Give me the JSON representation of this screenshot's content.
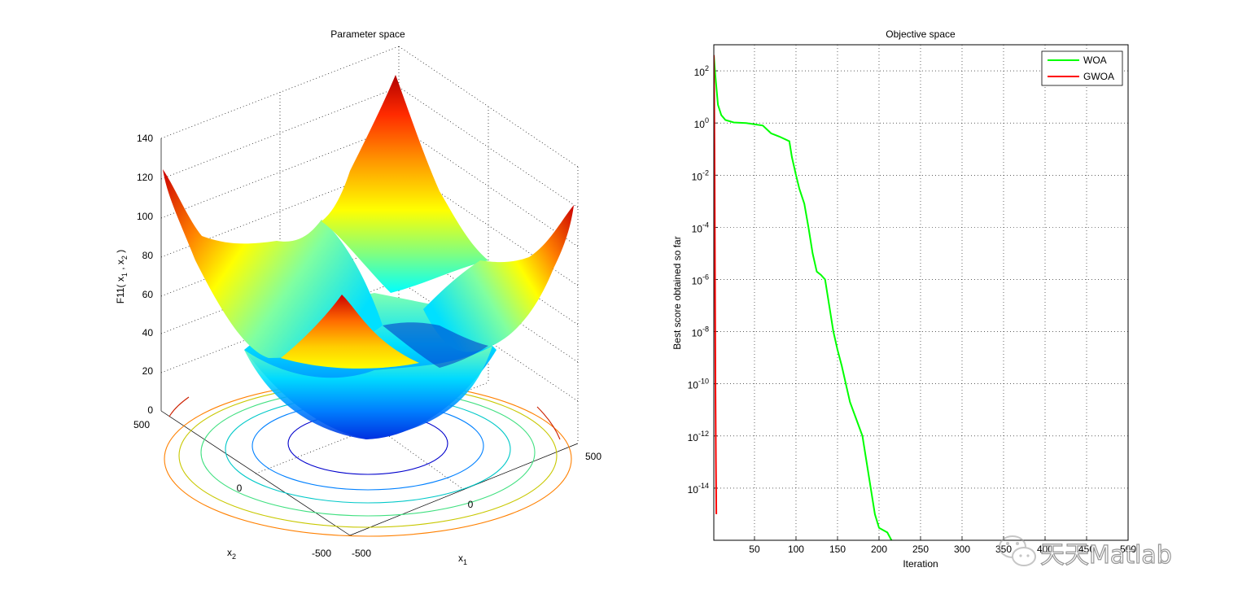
{
  "left_panel": {
    "title": "Parameter space",
    "zlabel": "F11( x",
    "zlabel_sub1": "1",
    "zlabel_mid": " , x",
    "zlabel_sub2": "2",
    "zlabel_end": " )",
    "xlabel": "x",
    "xlabel_sub": "1",
    "ylabel": "x",
    "ylabel_sub": "2"
  },
  "right_panel": {
    "title": "Objective space",
    "xlabel": "Iteration",
    "ylabel": "Best score obtained so far",
    "legend": [
      "WOA",
      "GWOA"
    ]
  },
  "watermark": {
    "text": "天天Matlab"
  },
  "chart_data": [
    {
      "type": "surface",
      "title": "Parameter space",
      "function": "F11",
      "xlabel": "x1",
      "ylabel": "x2",
      "zlabel": "F11( x1 , x2 )",
      "x_ticks": [
        "-500",
        "0",
        "500"
      ],
      "y_ticks": [
        "-500",
        "0",
        "500"
      ],
      "z_ticks": [
        "0",
        "20",
        "40",
        "60",
        "80",
        "100",
        "120",
        "140"
      ],
      "xlim": [
        -500,
        500
      ],
      "ylim": [
        -500,
        500
      ],
      "zlim": [
        0,
        140
      ],
      "colormap": "jet",
      "contour_levels": 7,
      "grid": true
    },
    {
      "type": "line",
      "title": "Objective space",
      "xlabel": "Iteration",
      "ylabel": "Best score obtained so far",
      "yscale": "log",
      "xlim": [
        1,
        500
      ],
      "ylim": [
        1e-16,
        1000
      ],
      "x_ticks": [
        "50",
        "100",
        "150",
        "200",
        "250",
        "300",
        "350",
        "400",
        "450",
        "500"
      ],
      "y_ticks": [
        {
          "base": "10",
          "exp": "2",
          "value": 100
        },
        {
          "base": "10",
          "exp": "0",
          "value": 1
        },
        {
          "base": "10",
          "exp": "-2",
          "value": 0.01
        },
        {
          "base": "10",
          "exp": "-4",
          "value": 0.0001
        },
        {
          "base": "10",
          "exp": "-6",
          "value": 1e-06
        },
        {
          "base": "10",
          "exp": "-8",
          "value": 1e-08
        },
        {
          "base": "10",
          "exp": "-10",
          "value": 1e-10
        },
        {
          "base": "10",
          "exp": "-12",
          "value": 1e-12
        },
        {
          "base": "10",
          "exp": "-14",
          "value": 1e-14
        }
      ],
      "grid": true,
      "legend_position": "top-right",
      "series": [
        {
          "name": "WOA",
          "color": "#00ff00",
          "points": [
            [
              1,
              400
            ],
            [
              3,
              60
            ],
            [
              6,
              5
            ],
            [
              10,
              2
            ],
            [
              15,
              1.3
            ],
            [
              25,
              1.05
            ],
            [
              40,
              1
            ],
            [
              60,
              0.8
            ],
            [
              70,
              0.4
            ],
            [
              80,
              0.3
            ],
            [
              92,
              0.2
            ],
            [
              95,
              0.05
            ],
            [
              100,
              0.01
            ],
            [
              104,
              0.003
            ],
            [
              110,
              0.0008
            ],
            [
              115,
              0.0001
            ],
            [
              120,
              1e-05
            ],
            [
              125,
              2e-06
            ],
            [
              130,
              1.5e-06
            ],
            [
              135,
              1e-06
            ],
            [
              140,
              1e-07
            ],
            [
              145,
              1e-08
            ],
            [
              150,
              2e-09
            ],
            [
              155,
              5e-10
            ],
            [
              160,
              1e-10
            ],
            [
              165,
              2e-11
            ],
            [
              172,
              5e-12
            ],
            [
              180,
              1e-12
            ],
            [
              185,
              1e-13
            ],
            [
              190,
              1e-14
            ],
            [
              195,
              1e-15
            ],
            [
              200,
              3e-16
            ],
            [
              210,
              2e-16
            ],
            [
              215,
              1e-16
            ]
          ]
        },
        {
          "name": "GWOA",
          "color": "#ff0000",
          "points": [
            [
              1,
              400
            ],
            [
              1.5,
              10
            ],
            [
              2,
              0.01
            ],
            [
              2.5,
              1e-06
            ],
            [
              3,
              1e-10
            ],
            [
              3.5,
              1e-13
            ],
            [
              4,
              1e-15
            ]
          ]
        }
      ]
    }
  ]
}
